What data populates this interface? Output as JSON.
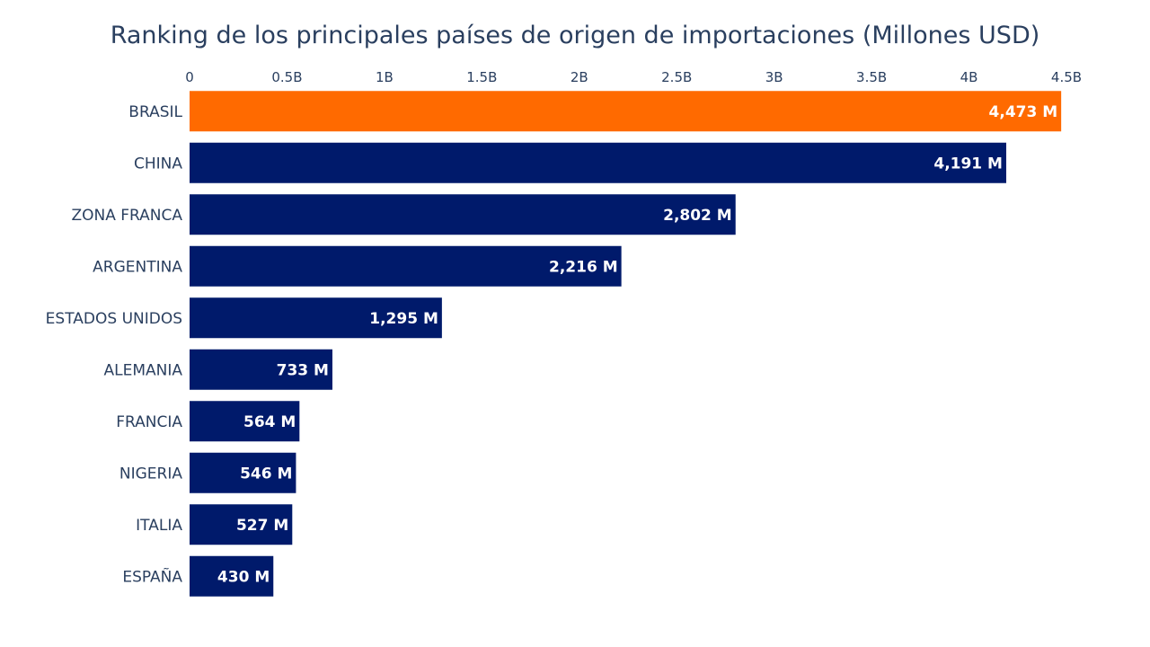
{
  "chart_data": {
    "type": "bar",
    "orientation": "horizontal",
    "title": "Ranking de los principales países de origen de importaciones (Millones USD)",
    "xlabel": "",
    "ylabel": "",
    "xlim": [
      0,
      4.5
    ],
    "x_ticks": [
      0,
      0.5,
      1,
      1.5,
      2,
      2.5,
      3,
      3.5,
      4,
      4.5
    ],
    "x_tick_labels": [
      "0",
      "0.5B",
      "1B",
      "1.5B",
      "2B",
      "2.5B",
      "3B",
      "3.5B",
      "4B",
      "4.5B"
    ],
    "x_axis_position": "top",
    "grid": false,
    "categories": [
      "BRASIL",
      "CHINA",
      "ZONA FRANCA",
      "ARGENTINA",
      "ESTADOS UNIDOS",
      "ALEMANIA",
      "FRANCIA",
      "NIGERIA",
      "ITALIA",
      "ESPAÑA"
    ],
    "values": [
      4473,
      4191,
      2802,
      2216,
      1295,
      733,
      564,
      546,
      527,
      430
    ],
    "value_labels": [
      "4,473 M",
      "4,191 M",
      "2,802 M",
      "2,216 M",
      "1,295 M",
      "733 M",
      "564 M",
      "546 M",
      "527 M",
      "430 M"
    ],
    "colors": {
      "highlight": "#ff6a00",
      "default": "#001a6b",
      "text": "#2a3f5f"
    },
    "highlight_category": "BRASIL"
  }
}
